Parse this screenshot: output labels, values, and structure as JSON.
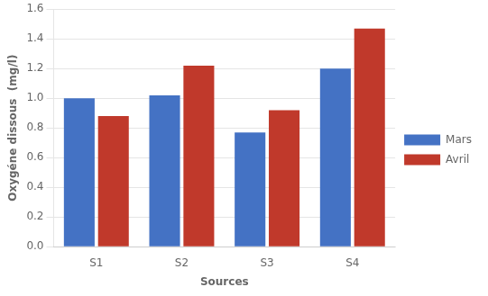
{
  "chart_data": {
    "type": "bar",
    "categories": [
      "S1",
      "S2",
      "S3",
      "S4"
    ],
    "series": [
      {
        "name": "Mars",
        "color": "#4472C4",
        "values": [
          1.0,
          1.02,
          0.77,
          1.2
        ]
      },
      {
        "name": "Avril",
        "color": "#C0392B",
        "values": [
          0.88,
          1.22,
          0.92,
          1.47
        ]
      }
    ],
    "xlabel": "Sources",
    "ylabel": "Oxygéne dissous  (mg/l)",
    "ylim": [
      0,
      1.6
    ],
    "yticks": [
      {
        "value": 0,
        "label": "0.0"
      },
      0.2,
      0.4,
      0.6,
      0.8,
      {
        "value": 1.0,
        "label": "1.0"
      },
      1.2,
      1.4,
      1.6
    ],
    "grid": true,
    "legend": "right"
  }
}
